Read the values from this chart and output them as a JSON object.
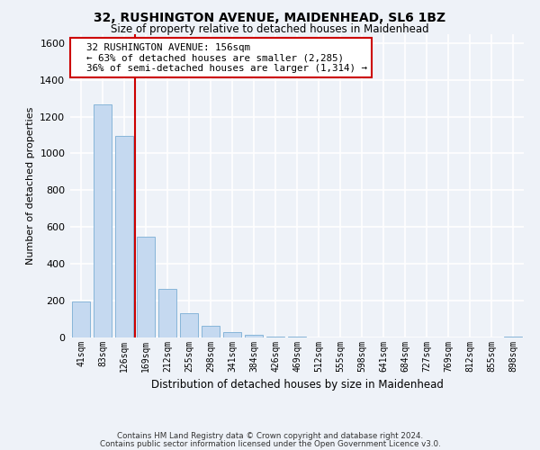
{
  "title": "32, RUSHINGTON AVENUE, MAIDENHEAD, SL6 1BZ",
  "subtitle": "Size of property relative to detached houses in Maidenhead",
  "xlabel": "Distribution of detached houses by size in Maidenhead",
  "ylabel": "Number of detached properties",
  "categories": [
    "41sqm",
    "83sqm",
    "126sqm",
    "169sqm",
    "212sqm",
    "255sqm",
    "298sqm",
    "341sqm",
    "384sqm",
    "426sqm",
    "469sqm",
    "512sqm",
    "555sqm",
    "598sqm",
    "641sqm",
    "684sqm",
    "727sqm",
    "769sqm",
    "812sqm",
    "855sqm",
    "898sqm"
  ],
  "values": [
    195,
    1265,
    1095,
    550,
    265,
    130,
    65,
    30,
    15,
    5,
    3,
    2,
    2,
    2,
    2,
    1,
    1,
    1,
    1,
    1,
    5
  ],
  "bar_color": "#c5d9f0",
  "bar_edge_color": "#7aadd4",
  "property_line_x": 2.5,
  "property_value": 156,
  "annotation_text": "  32 RUSHINGTON AVENUE: 156sqm\n  ← 63% of detached houses are smaller (2,285)\n  36% of semi-detached houses are larger (1,314) →",
  "annotation_box_color": "#ffffff",
  "annotation_box_edge_color": "#cc0000",
  "vline_color": "#cc0000",
  "ylim": [
    0,
    1650
  ],
  "yticks": [
    0,
    200,
    400,
    600,
    800,
    1000,
    1200,
    1400,
    1600
  ],
  "background_color": "#eef2f8",
  "plot_bg_color": "#eef2f8",
  "grid_color": "#ffffff",
  "footer_line1": "Contains HM Land Registry data © Crown copyright and database right 2024.",
  "footer_line2": "Contains public sector information licensed under the Open Government Licence v3.0."
}
